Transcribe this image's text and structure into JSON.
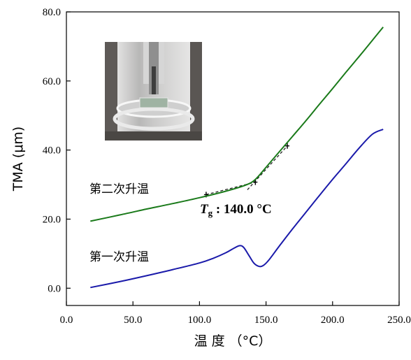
{
  "chart_data": {
    "type": "line",
    "xlabel": "温 度 （°C）",
    "ylabel": "TMA (μm)",
    "xlim": [
      0,
      250
    ],
    "ylim": [
      -5,
      80
    ],
    "xticks": [
      "0.0",
      "50.0",
      "100.0",
      "150.0",
      "200.0",
      "250.0"
    ],
    "yticks": [
      "0.0",
      "20.0",
      "40.0",
      "60.0",
      "80.0"
    ],
    "grid": false,
    "legend": "none",
    "series": [
      {
        "name": "第二次升温",
        "color": "#1a7a1a",
        "x": [
          18,
          40,
          60,
          80,
          100,
          120,
          135,
          142,
          150,
          160,
          170,
          180,
          190,
          200,
          210,
          220,
          230,
          238
        ],
        "y": [
          19.4,
          21.2,
          22.9,
          24.5,
          26.2,
          28.1,
          29.9,
          31.5,
          35.0,
          39.5,
          44.0,
          48.5,
          53.2,
          57.8,
          62.5,
          67.1,
          71.8,
          75.6
        ]
      },
      {
        "name": "第一次升温",
        "color": "#1a1aaa",
        "x": [
          18,
          40,
          60,
          80,
          100,
          110,
          120,
          126,
          130,
          133,
          137,
          141,
          145,
          148,
          152,
          160,
          170,
          180,
          190,
          200,
          210,
          220,
          230,
          238
        ],
        "y": [
          0.2,
          1.9,
          3.6,
          5.4,
          7.3,
          8.6,
          10.3,
          11.6,
          12.3,
          11.9,
          9.6,
          7.2,
          6.3,
          6.6,
          8.1,
          12.2,
          17.2,
          22.0,
          26.8,
          31.5,
          36.0,
          40.6,
          44.6,
          46.0
        ]
      }
    ],
    "tangent_lines": [
      {
        "x": [
          105,
          142
        ],
        "y": [
          27.1,
          30.7
        ]
      },
      {
        "x": [
          136,
          166
        ],
        "y": [
          28.5,
          41.2
        ]
      }
    ],
    "tangent_color": "#222222",
    "annotations": {
      "tg_symbol": "T",
      "tg_subscript": "g",
      "tg_value": " : 140.0 °C"
    }
  }
}
